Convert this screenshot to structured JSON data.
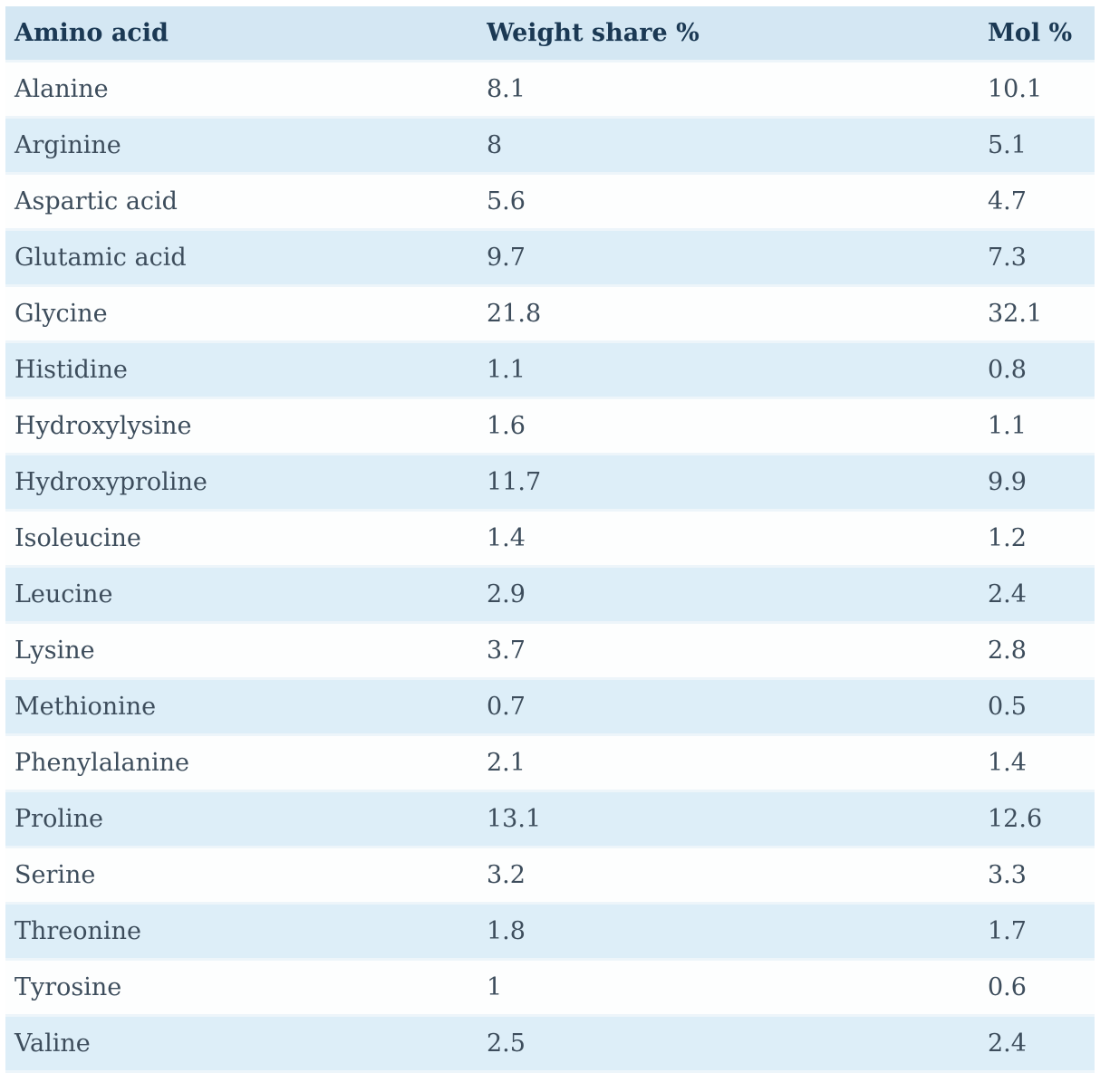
{
  "colors": {
    "header_bg": "#d4e7f3",
    "row_blue_bg": "#ddeef8",
    "row_white_bg": "#fdfefe",
    "separator": "#edf5fa",
    "header_text": "#1b3954",
    "body_text": "#3d4d5c",
    "page_bg": "#ffffff"
  },
  "chart_data": {
    "type": "table",
    "title": "",
    "columns": [
      "Amino acid",
      "Weight share %",
      "Mol %"
    ],
    "rows": [
      [
        "Alanine",
        8.1,
        10.1
      ],
      [
        "Arginine",
        8,
        5.1
      ],
      [
        "Aspartic acid",
        5.6,
        4.7
      ],
      [
        "Glutamic acid",
        9.7,
        7.3
      ],
      [
        "Glycine",
        21.8,
        32.1
      ],
      [
        "Histidine",
        1.1,
        0.8
      ],
      [
        "Hydroxylysine",
        1.6,
        1.1
      ],
      [
        "Hydroxyproline",
        11.7,
        9.9
      ],
      [
        "Isoleucine",
        1.4,
        1.2
      ],
      [
        "Leucine",
        2.9,
        2.4
      ],
      [
        "Lysine",
        3.7,
        2.8
      ],
      [
        "Methionine",
        0.7,
        0.5
      ],
      [
        "Phenylalanine",
        2.1,
        1.4
      ],
      [
        "Proline",
        13.1,
        12.6
      ],
      [
        "Serine",
        3.2,
        3.3
      ],
      [
        "Threonine",
        1.8,
        1.7
      ],
      [
        "Tyrosine",
        1,
        0.6
      ],
      [
        "Valine",
        2.5,
        2.4
      ]
    ],
    "layout": {
      "row_striping": "alternating white and light blue, header light blue",
      "grid": "horizontal light separators only",
      "alignment": "all columns left-aligned"
    }
  }
}
